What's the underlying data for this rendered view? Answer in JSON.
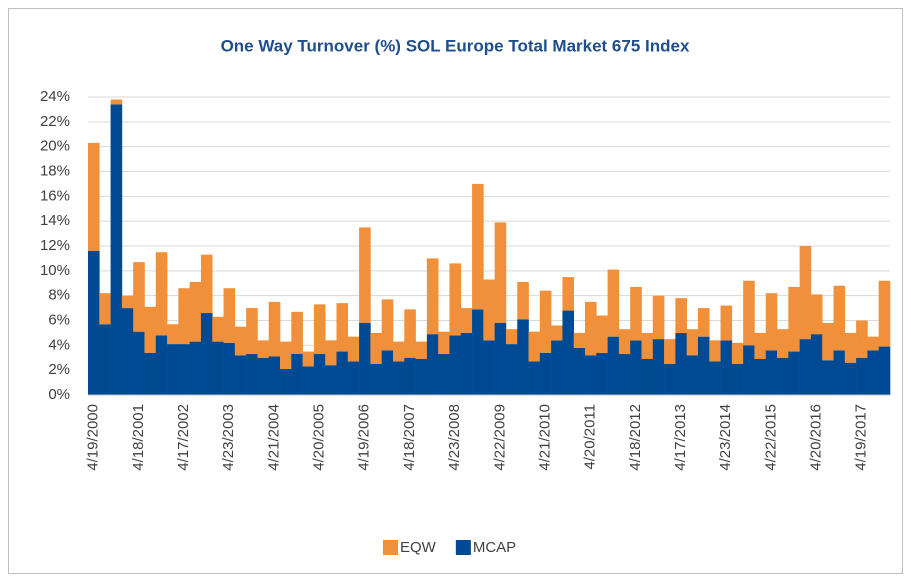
{
  "chart_data": {
    "type": "stacked_bar",
    "title": "One Way Turnover (%) SOL Europe Total Market 675 Index",
    "categories": [
      "4/19/2000",
      null,
      null,
      null,
      "4/18/2001",
      null,
      null,
      null,
      "4/17/2002",
      null,
      null,
      null,
      "4/23/2003",
      null,
      null,
      null,
      "4/21/2004",
      null,
      null,
      null,
      "4/20/2005",
      null,
      null,
      null,
      "4/19/2006",
      null,
      null,
      null,
      "4/18/2007",
      null,
      null,
      null,
      "4/23/2008",
      null,
      null,
      null,
      "4/22/2009",
      null,
      null,
      null,
      "4/21/2010",
      null,
      null,
      null,
      "4/20/2011",
      null,
      null,
      null,
      "4/18/2012",
      null,
      null,
      null,
      "4/17/2013",
      null,
      null,
      null,
      "4/23/2014",
      null,
      null,
      null,
      "4/22/2015",
      null,
      null,
      null,
      "4/20/2016",
      null,
      null,
      null,
      "4/19/2017",
      null,
      null
    ],
    "series": [
      {
        "name": "EQW",
        "color": "#f0903a",
        "values": [
          8.7,
          2.5,
          0.4,
          1.0,
          5.6,
          3.7,
          6.7,
          1.6,
          4.5,
          4.8,
          4.7,
          2.0,
          4.4,
          2.3,
          3.7,
          1.4,
          4.4,
          2.2,
          3.4,
          1.2,
          4.0,
          2.0,
          3.9,
          2.0,
          7.7,
          2.5,
          4.1,
          1.6,
          3.9,
          1.4,
          6.1,
          1.8,
          5.8,
          2.0,
          10.1,
          4.9,
          8.1,
          1.2,
          3.0,
          2.4,
          5.0,
          1.2,
          2.7,
          1.2,
          4.3,
          3.0,
          5.4,
          2.0,
          4.3,
          2.1,
          3.5,
          2.0,
          2.8,
          2.1,
          2.3,
          1.7,
          2.8,
          1.7,
          5.2,
          2.1,
          4.6,
          2.3,
          5.2,
          7.5,
          3.2,
          3.0,
          5.2,
          2.4,
          3.0,
          1.1,
          5.3
        ]
      },
      {
        "name": "MCAP",
        "color": "#004a93",
        "values": [
          11.6,
          5.7,
          23.4,
          7.0,
          5.1,
          3.4,
          4.8,
          4.1,
          4.1,
          4.3,
          6.6,
          4.3,
          4.2,
          3.2,
          3.3,
          3.0,
          3.1,
          2.1,
          3.3,
          2.3,
          3.3,
          2.4,
          3.5,
          2.7,
          5.8,
          2.5,
          3.6,
          2.7,
          3.0,
          2.9,
          4.9,
          3.3,
          4.8,
          5.0,
          6.9,
          4.4,
          5.8,
          4.1,
          6.1,
          2.7,
          3.4,
          4.4,
          6.8,
          3.8,
          3.2,
          3.4,
          4.7,
          3.3,
          4.4,
          2.9,
          4.5,
          2.5,
          5.0,
          3.2,
          4.7,
          2.7,
          4.4,
          2.5,
          4.0,
          2.9,
          3.6,
          3.0,
          3.5,
          4.5,
          4.9,
          2.8,
          3.6,
          2.6,
          3.0,
          3.6,
          3.9
        ]
      }
    ],
    "ylim": [
      0,
      24
    ],
    "yticks": [
      {
        "value": 0,
        "label": "0%"
      },
      {
        "value": 2,
        "label": "2%"
      },
      {
        "value": 4,
        "label": "4%"
      },
      {
        "value": 6,
        "label": "6%"
      },
      {
        "value": 8,
        "label": "8%"
      },
      {
        "value": 10,
        "label": "10%"
      },
      {
        "value": 12,
        "label": "12%"
      },
      {
        "value": 14,
        "label": "14%"
      },
      {
        "value": 16,
        "label": "16%"
      },
      {
        "value": 18,
        "label": "18%"
      },
      {
        "value": 20,
        "label": "20%"
      },
      {
        "value": 22,
        "label": "22%"
      },
      {
        "value": 24,
        "label": "24%"
      }
    ],
    "grid": true,
    "legend": "bottom"
  }
}
